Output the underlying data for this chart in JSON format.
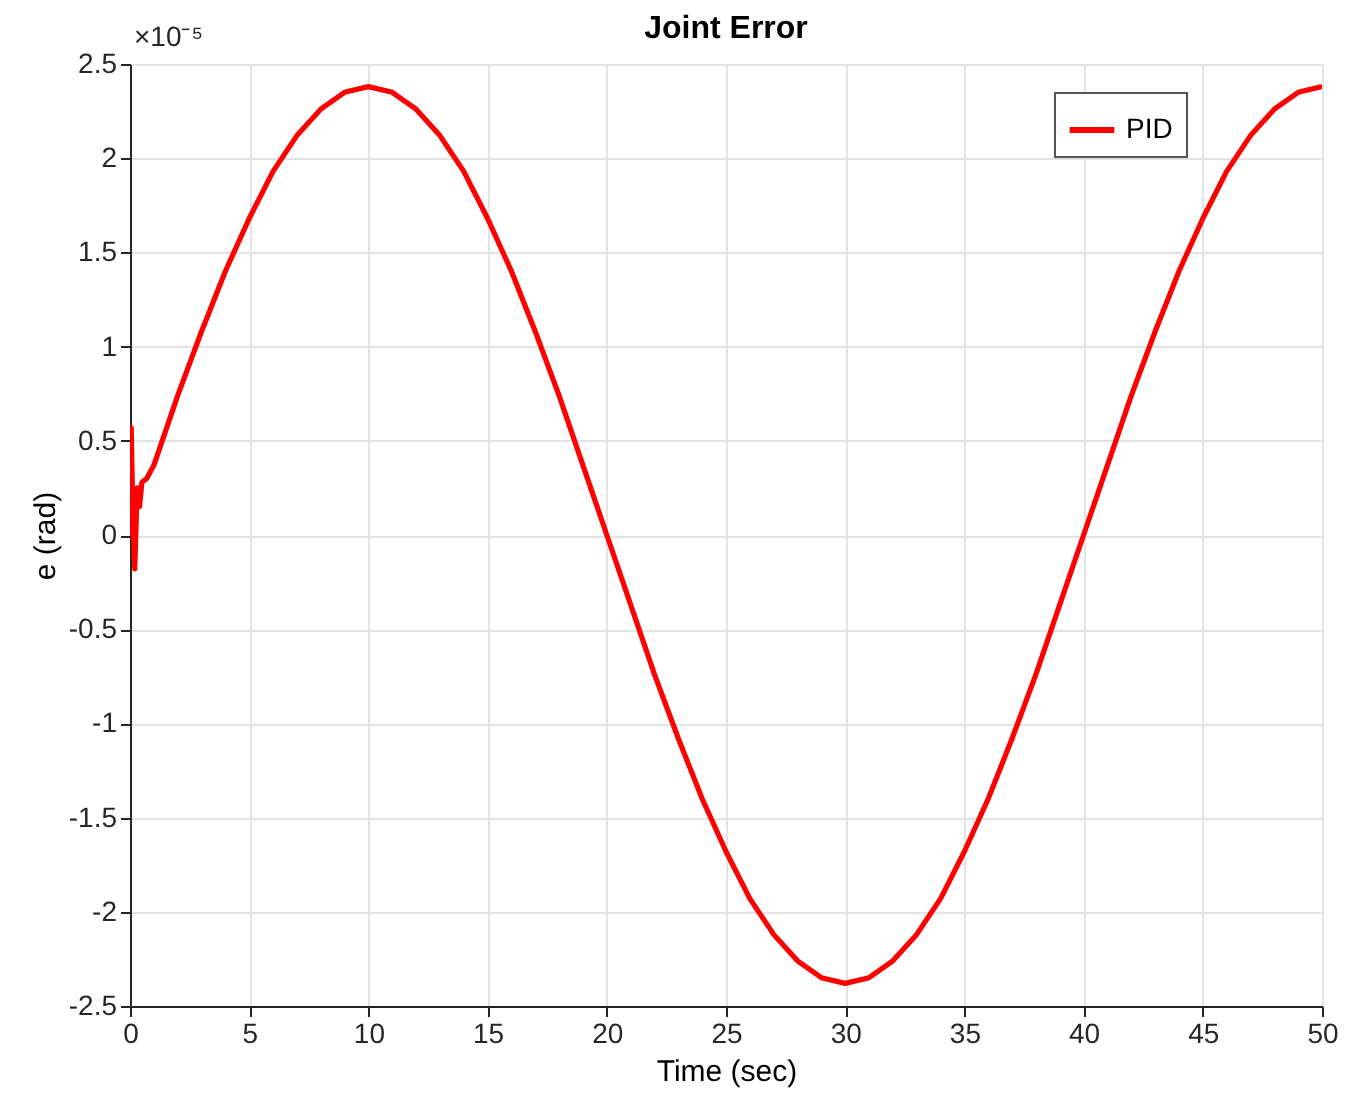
{
  "chart_data": {
    "type": "line",
    "title": "Joint Error",
    "xlabel": "Time (sec)",
    "ylabel": "e (rad)",
    "annotations": [
      "×10⁻⁵"
    ],
    "x": [
      0,
      0.05,
      0.12,
      0.2,
      0.3,
      0.4,
      0.5,
      0.7,
      1,
      2,
      3,
      4,
      5,
      6,
      7,
      8,
      9,
      10,
      11,
      12,
      13,
      14,
      15,
      16,
      17,
      18,
      19,
      20,
      21,
      22,
      23,
      24,
      25,
      26,
      27,
      28,
      29,
      30,
      31,
      32,
      33,
      34,
      35,
      36,
      37,
      38,
      39,
      40,
      41,
      42,
      43,
      44,
      45,
      46,
      47,
      48,
      49,
      50
    ],
    "series": [
      {
        "name": "PID",
        "color": "#ff0000",
        "values": [
          0,
          0.57,
          0.1,
          -0.18,
          0.25,
          0.15,
          0.28,
          0.3,
          0.37,
          0.74,
          1.08,
          1.4,
          1.68,
          1.93,
          2.12,
          2.26,
          2.35,
          2.38,
          2.35,
          2.26,
          2.12,
          1.93,
          1.68,
          1.4,
          1.08,
          0.74,
          0.37,
          0,
          -0.37,
          -0.74,
          -1.08,
          -1.4,
          -1.68,
          -1.93,
          -2.12,
          -2.26,
          -2.35,
          -2.38,
          -2.35,
          -2.26,
          -2.12,
          -1.93,
          -1.68,
          -1.4,
          -1.08,
          -0.74,
          -0.37,
          0,
          0.37,
          0.74,
          1.08,
          1.4,
          1.68,
          1.93,
          2.12,
          2.26,
          2.35,
          2.38
        ]
      }
    ],
    "xlim": [
      0,
      50
    ],
    "xticks": [
      0,
      5,
      10,
      15,
      20,
      25,
      30,
      35,
      40,
      45,
      50
    ],
    "ylim": [
      -2.5,
      2.5
    ],
    "yticks": [
      -2.5,
      -2,
      -1.5,
      -1,
      -0.5,
      0,
      0.5,
      1,
      1.5,
      2,
      2.5
    ],
    "grid": true,
    "legend": "top right",
    "marker": "none",
    "line_style": "solid"
  }
}
